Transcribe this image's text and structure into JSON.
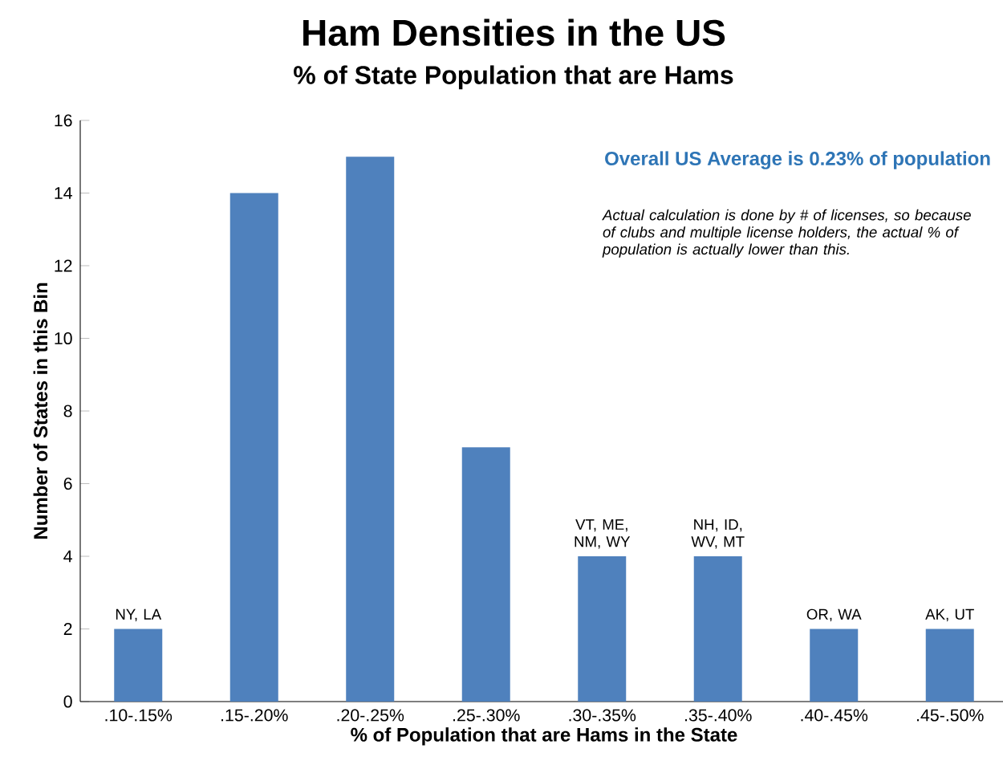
{
  "chart_data": {
    "type": "bar",
    "title": "Ham Densities in the US",
    "subtitle": "% of State Population that are Hams",
    "xlabel": "% of Population  that are Hams in the State",
    "ylabel": "Number of States in this Bin",
    "categories": [
      ".10-.15%",
      ".15-.20%",
      ".20-.25%",
      ".25-.30%",
      ".30-.35%",
      ".35-.40%",
      ".40-.45%",
      ".45-.50%"
    ],
    "values": [
      2,
      14,
      15,
      7,
      4,
      4,
      2,
      2
    ],
    "color": "#4f81bd",
    "ylim": [
      0,
      16
    ],
    "yticks": [
      0,
      2,
      4,
      6,
      8,
      10,
      12,
      14,
      16
    ],
    "grid": false,
    "annotations": [
      "Overall US Average is 0.23% of population",
      "Actual calculation is done by # of licenses, so because of clubs and multiple license holders, the actual % of population is actually lower than this.",
      {
        "text": "NY, LA",
        "x": ".10-.15%",
        "y": 2
      },
      {
        "text": "VT, ME, NM, WY",
        "x": ".30-.35%",
        "y": 4
      },
      {
        "text": "NH, ID, WV, MT",
        "x": ".35-.40%",
        "y": 4
      },
      {
        "text": "OR, WA",
        "x": ".40-.45%",
        "y": 2
      },
      {
        "text": "AK, UT",
        "x": ".45-.50%",
        "y": 2
      }
    ]
  }
}
